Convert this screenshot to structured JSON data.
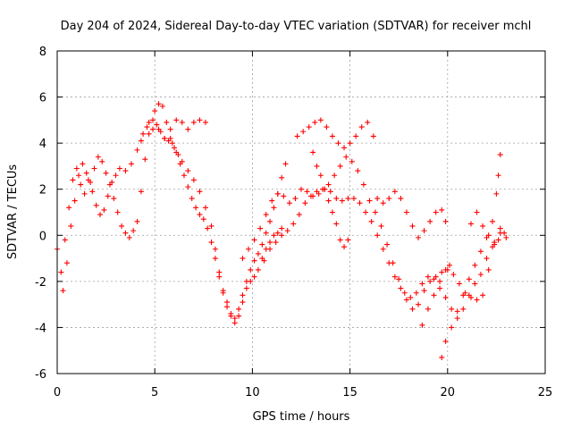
{
  "chart_data": {
    "type": "scatter",
    "title": "Day 204 of 2024, Sidereal Day-to-day VTEC variation (SDTVAR) for receiver mchl",
    "xlabel": "GPS time / hours",
    "ylabel": "SDTVAR / TECUs",
    "xlim": [
      0,
      25
    ],
    "ylim": [
      -6,
      8
    ],
    "xticks": [
      0,
      5,
      10,
      15,
      20,
      25
    ],
    "yticks": [
      -6,
      -4,
      -2,
      0,
      2,
      4,
      6,
      8
    ],
    "grid": true,
    "marker": "+",
    "color": "#ff0000",
    "series": [
      {
        "points": [
          [
            0.0,
            -0.6
          ],
          [
            0.2,
            -1.6
          ],
          [
            0.4,
            -0.2
          ],
          [
            0.6,
            1.2
          ],
          [
            0.8,
            2.4
          ],
          [
            1.0,
            2.9
          ],
          [
            1.2,
            2.2
          ],
          [
            1.4,
            1.8
          ],
          [
            1.6,
            2.4
          ],
          [
            1.8,
            1.9
          ],
          [
            2.0,
            1.3
          ],
          [
            2.2,
            0.9
          ],
          [
            2.4,
            1.1
          ],
          [
            2.6,
            1.7
          ],
          [
            2.8,
            2.3
          ],
          [
            3.0,
            2.6
          ],
          [
            3.2,
            2.9
          ],
          [
            3.5,
            2.8
          ],
          [
            3.8,
            3.1
          ],
          [
            4.1,
            3.7
          ],
          [
            4.4,
            4.4
          ],
          [
            4.7,
            4.9
          ],
          [
            5.0,
            5.4
          ],
          [
            5.2,
            5.7
          ],
          [
            5.4,
            5.6
          ],
          [
            5.6,
            4.9
          ],
          [
            5.8,
            4.2
          ],
          [
            6.0,
            3.8
          ],
          [
            6.2,
            3.5
          ],
          [
            6.4,
            3.2
          ],
          [
            6.7,
            2.8
          ],
          [
            7.0,
            2.4
          ],
          [
            7.3,
            1.9
          ],
          [
            7.6,
            1.2
          ],
          [
            7.9,
            0.4
          ],
          [
            8.1,
            -0.6
          ],
          [
            8.3,
            -1.6
          ],
          [
            8.5,
            -2.4
          ],
          [
            8.7,
            -2.9
          ],
          [
            8.9,
            -3.4
          ],
          [
            9.1,
            -3.6
          ],
          [
            9.3,
            -3.2
          ],
          [
            9.5,
            -2.6
          ],
          [
            9.7,
            -2.0
          ],
          [
            9.9,
            -1.5
          ],
          [
            10.1,
            -1.1
          ],
          [
            10.3,
            -0.8
          ],
          [
            10.5,
            -0.4
          ],
          [
            10.7,
            0.1
          ],
          [
            10.9,
            0.6
          ],
          [
            11.1,
            1.2
          ],
          [
            11.3,
            1.8
          ],
          [
            11.5,
            2.5
          ],
          [
            11.7,
            3.1
          ]
        ]
      },
      {
        "points": [
          [
            0.3,
            -2.4
          ],
          [
            0.5,
            -1.2
          ],
          [
            0.7,
            0.4
          ],
          [
            0.9,
            1.5
          ],
          [
            1.1,
            2.6
          ],
          [
            1.3,
            3.1
          ],
          [
            1.5,
            2.7
          ],
          [
            1.7,
            2.3
          ],
          [
            1.9,
            2.9
          ],
          [
            2.1,
            3.4
          ],
          [
            2.3,
            3.2
          ],
          [
            2.5,
            2.7
          ],
          [
            2.7,
            2.2
          ],
          [
            2.9,
            1.6
          ],
          [
            3.1,
            1.0
          ],
          [
            3.3,
            0.4
          ],
          [
            3.5,
            0.1
          ],
          [
            3.7,
            -0.1
          ],
          [
            3.9,
            0.2
          ],
          [
            4.1,
            0.6
          ],
          [
            4.3,
            1.9
          ],
          [
            4.5,
            3.3
          ],
          [
            4.7,
            4.4
          ],
          [
            4.9,
            5.0
          ],
          [
            5.1,
            4.8
          ],
          [
            5.3,
            4.5
          ],
          [
            5.5,
            4.2
          ],
          [
            5.7,
            4.1
          ],
          [
            5.9,
            4.0
          ],
          [
            6.1,
            3.6
          ],
          [
            6.3,
            3.1
          ],
          [
            6.5,
            2.6
          ],
          [
            6.7,
            2.1
          ],
          [
            6.9,
            1.6
          ],
          [
            7.1,
            1.2
          ],
          [
            7.3,
            0.9
          ],
          [
            7.5,
            0.7
          ],
          [
            7.7,
            0.3
          ],
          [
            7.9,
            -0.3
          ],
          [
            8.1,
            -1.0
          ],
          [
            8.3,
            -1.8
          ],
          [
            8.5,
            -2.5
          ],
          [
            8.7,
            -3.1
          ],
          [
            8.9,
            -3.5
          ],
          [
            9.1,
            -3.8
          ],
          [
            9.3,
            -3.5
          ],
          [
            9.5,
            -2.9
          ],
          [
            9.7,
            -2.3
          ],
          [
            9.9,
            -2.0
          ],
          [
            10.1,
            -1.8
          ],
          [
            10.3,
            -1.5
          ],
          [
            10.5,
            -1.0
          ],
          [
            10.7,
            -0.6
          ],
          [
            10.9,
            -0.3
          ],
          [
            11.1,
            0.0
          ],
          [
            11.3,
            0.1
          ],
          [
            11.5,
            0.3
          ]
        ]
      },
      {
        "points": [
          [
            4.3,
            4.1
          ],
          [
            4.6,
            4.7
          ],
          [
            4.9,
            4.6
          ],
          [
            5.2,
            4.6
          ],
          [
            5.5,
            4.2
          ],
          [
            5.8,
            4.6
          ],
          [
            6.1,
            5.0
          ],
          [
            6.4,
            4.9
          ],
          [
            6.7,
            4.6
          ],
          [
            7.0,
            4.9
          ],
          [
            7.3,
            5.0
          ],
          [
            7.6,
            4.9
          ]
        ]
      },
      {
        "points": [
          [
            9.5,
            -1.0
          ],
          [
            9.8,
            -0.6
          ],
          [
            10.1,
            -0.2
          ],
          [
            10.4,
            0.3
          ],
          [
            10.7,
            0.9
          ],
          [
            11.0,
            1.5
          ],
          [
            11.3,
            1.8
          ],
          [
            11.6,
            1.7
          ],
          [
            11.9,
            1.4
          ],
          [
            12.2,
            1.6
          ],
          [
            12.5,
            2.0
          ],
          [
            12.8,
            1.9
          ],
          [
            13.1,
            1.7
          ],
          [
            13.4,
            1.8
          ],
          [
            13.7,
            2.0
          ],
          [
            14.0,
            1.9
          ],
          [
            14.3,
            1.6
          ],
          [
            14.6,
            1.5
          ],
          [
            14.9,
            1.6
          ],
          [
            15.2,
            1.6
          ],
          [
            15.5,
            1.4
          ],
          [
            15.8,
            1.0
          ],
          [
            16.1,
            0.6
          ],
          [
            16.4,
            0.0
          ],
          [
            16.7,
            -0.6
          ],
          [
            17.0,
            -1.2
          ],
          [
            17.3,
            -1.8
          ],
          [
            17.6,
            -2.3
          ],
          [
            17.9,
            -2.8
          ],
          [
            18.2,
            -3.2
          ],
          [
            18.5,
            -3.0
          ],
          [
            18.8,
            -2.4
          ],
          [
            19.1,
            -2.0
          ],
          [
            19.4,
            -1.8
          ],
          [
            19.7,
            -1.6
          ],
          [
            20.0,
            -1.5
          ],
          [
            20.3,
            -1.7
          ],
          [
            20.6,
            -2.1
          ],
          [
            20.9,
            -2.5
          ],
          [
            21.2,
            -2.7
          ],
          [
            21.5,
            -2.8
          ],
          [
            21.8,
            -2.6
          ],
          [
            22.1,
            -1.5
          ],
          [
            22.4,
            -0.3
          ],
          [
            22.7,
            0.1
          ]
        ]
      },
      {
        "points": [
          [
            10.6,
            -1.1
          ],
          [
            10.9,
            -0.6
          ],
          [
            11.2,
            -0.3
          ],
          [
            11.5,
            0.0
          ],
          [
            11.8,
            0.2
          ],
          [
            12.1,
            0.5
          ],
          [
            12.4,
            0.9
          ],
          [
            12.7,
            1.4
          ],
          [
            13.0,
            1.7
          ],
          [
            13.3,
            1.9
          ],
          [
            13.6,
            2.0
          ],
          [
            13.9,
            2.2
          ],
          [
            14.2,
            2.6
          ],
          [
            14.5,
            3.0
          ],
          [
            14.8,
            3.4
          ],
          [
            15.1,
            3.2
          ],
          [
            15.4,
            2.8
          ],
          [
            15.7,
            2.2
          ],
          [
            16.0,
            1.5
          ],
          [
            16.3,
            1.0
          ],
          [
            16.6,
            0.4
          ],
          [
            16.9,
            -0.4
          ],
          [
            17.2,
            -1.2
          ],
          [
            17.5,
            -1.9
          ],
          [
            17.8,
            -2.5
          ],
          [
            18.1,
            -2.7
          ],
          [
            18.4,
            -2.5
          ],
          [
            18.7,
            -2.1
          ],
          [
            19.0,
            -1.8
          ],
          [
            19.3,
            -1.9
          ],
          [
            19.6,
            -2.3
          ],
          [
            19.9,
            -2.7
          ],
          [
            20.2,
            -3.2
          ],
          [
            20.5,
            -3.6
          ],
          [
            20.8,
            -3.2
          ],
          [
            21.1,
            -2.6
          ],
          [
            21.4,
            -2.1
          ],
          [
            21.7,
            -1.7
          ],
          [
            22.0,
            -1.0
          ],
          [
            22.3,
            -0.5
          ],
          [
            22.6,
            -0.2
          ],
          [
            22.9,
            0.1
          ]
        ]
      },
      {
        "points": [
          [
            12.3,
            4.3
          ],
          [
            12.6,
            4.5
          ],
          [
            12.9,
            4.7
          ],
          [
            13.2,
            4.9
          ],
          [
            13.5,
            5.0
          ],
          [
            13.8,
            4.7
          ],
          [
            14.1,
            4.3
          ],
          [
            14.4,
            4.0
          ],
          [
            14.7,
            3.8
          ],
          [
            15.0,
            4.0
          ],
          [
            15.3,
            4.3
          ],
          [
            15.6,
            4.7
          ],
          [
            15.9,
            4.9
          ],
          [
            16.2,
            4.3
          ]
        ]
      },
      {
        "points": [
          [
            13.1,
            3.6
          ],
          [
            13.3,
            3.0
          ],
          [
            13.5,
            2.6
          ],
          [
            13.7,
            2.0
          ],
          [
            13.9,
            1.5
          ],
          [
            14.1,
            1.0
          ],
          [
            14.3,
            0.5
          ],
          [
            14.5,
            -0.2
          ],
          [
            14.7,
            -0.5
          ],
          [
            14.9,
            -0.2
          ]
        ]
      },
      {
        "points": [
          [
            16.4,
            1.6
          ],
          [
            16.7,
            1.4
          ],
          [
            17.0,
            1.6
          ],
          [
            17.3,
            1.9
          ],
          [
            17.6,
            1.6
          ],
          [
            17.9,
            1.0
          ],
          [
            18.2,
            0.4
          ],
          [
            18.5,
            -0.1
          ],
          [
            18.8,
            0.2
          ],
          [
            19.1,
            0.6
          ],
          [
            19.4,
            1.0
          ],
          [
            19.7,
            1.1
          ],
          [
            19.9,
            0.6
          ]
        ]
      },
      {
        "points": [
          [
            18.7,
            -3.9
          ],
          [
            19.0,
            -3.2
          ],
          [
            19.3,
            -2.6
          ],
          [
            19.6,
            -2.0
          ],
          [
            19.9,
            -1.5
          ],
          [
            20.1,
            -1.3
          ],
          [
            19.7,
            -5.3
          ],
          [
            19.9,
            -4.6
          ],
          [
            20.2,
            -4.0
          ],
          [
            20.5,
            -3.3
          ],
          [
            20.8,
            -2.6
          ],
          [
            21.1,
            -1.9
          ],
          [
            21.4,
            -1.3
          ],
          [
            21.7,
            -0.7
          ],
          [
            22.0,
            -0.1
          ],
          [
            22.3,
            0.6
          ],
          [
            22.5,
            1.8
          ],
          [
            22.6,
            2.6
          ],
          [
            22.7,
            3.5
          ],
          [
            21.2,
            0.5
          ],
          [
            21.5,
            1.0
          ],
          [
            21.8,
            0.4
          ],
          [
            22.1,
            0.0
          ],
          [
            22.4,
            -0.4
          ],
          [
            22.7,
            0.3
          ],
          [
            23.0,
            -0.1
          ]
        ]
      }
    ]
  }
}
